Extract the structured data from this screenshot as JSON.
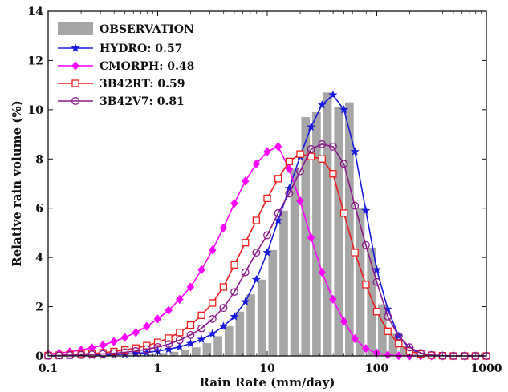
{
  "chart_data": {
    "type": "bar+line",
    "x_scale": "log",
    "xlim": [
      0.1,
      1000
    ],
    "ylim": [
      0,
      14
    ],
    "xlabel": "Rain Rate (mm/day)",
    "ylabel": "Relative rain volume (%)",
    "x_ticks": [
      "0.1",
      "1",
      "10",
      "100",
      "1000"
    ],
    "y_ticks": [
      "0",
      "2",
      "4",
      "6",
      "8",
      "10",
      "12",
      "14"
    ],
    "grid": false,
    "legend_position": "top-left",
    "bars": {
      "name": "OBSERVATION",
      "color": "#a6a6a6",
      "x": [
        0.112,
        0.141,
        0.178,
        0.224,
        0.282,
        0.355,
        0.447,
        0.562,
        0.708,
        0.891,
        1.122,
        1.413,
        1.778,
        2.239,
        2.818,
        3.548,
        4.467,
        5.623,
        7.079,
        8.913,
        11.22,
        14.13,
        17.78,
        22.39,
        28.18,
        35.48,
        44.67,
        56.23,
        70.79,
        89.13,
        112.2,
        141.3,
        177.8,
        223.9,
        281.8,
        354.8,
        446.7,
        562.3,
        707.9,
        891.3
      ],
      "values": [
        0,
        0,
        0,
        0,
        0,
        0,
        0.02,
        0.03,
        0.05,
        0.08,
        0.12,
        0.17,
        0.25,
        0.35,
        0.52,
        0.8,
        1.2,
        1.8,
        2.5,
        3.1,
        4.3,
        5.9,
        7.6,
        9.7,
        9.9,
        10.7,
        10.1,
        10.3,
        6.0,
        4.4,
        2.1,
        0.9,
        0.4,
        0.1,
        0.05,
        0,
        0,
        0,
        0,
        0
      ]
    },
    "series": [
      {
        "name": "HYDRO: 0.57",
        "color": "#1a1adf",
        "marker": "star",
        "x": [
          0.1,
          0.126,
          0.158,
          0.2,
          0.251,
          0.316,
          0.398,
          0.501,
          0.631,
          0.794,
          1.0,
          1.259,
          1.585,
          1.995,
          2.512,
          3.162,
          3.981,
          5.012,
          6.31,
          7.943,
          10.0,
          12.59,
          15.85,
          19.95,
          25.12,
          31.62,
          39.81,
          50.12,
          63.1,
          79.43,
          100.0,
          125.9,
          158.5,
          199.5,
          251.2,
          316.2,
          398.1,
          501.2,
          631.0,
          794.3,
          1000.0
        ],
        "y": [
          0.0,
          0.0,
          0.01,
          0.01,
          0.02,
          0.03,
          0.05,
          0.07,
          0.1,
          0.14,
          0.2,
          0.27,
          0.37,
          0.5,
          0.67,
          0.9,
          1.2,
          1.6,
          2.2,
          3.1,
          4.2,
          5.5,
          6.8,
          8.1,
          9.3,
          10.2,
          10.6,
          10.0,
          8.3,
          5.9,
          3.5,
          1.9,
          0.8,
          0.3,
          0.1,
          0.03,
          0.01,
          0.0,
          0.0,
          0.0,
          0.0
        ]
      },
      {
        "name": "CMORPH: 0.48",
        "color": "#ff00ff",
        "marker": "diamond",
        "x": [
          0.1,
          0.126,
          0.158,
          0.2,
          0.251,
          0.316,
          0.398,
          0.501,
          0.631,
          0.794,
          1.0,
          1.259,
          1.585,
          1.995,
          2.512,
          3.162,
          3.981,
          5.012,
          6.31,
          7.943,
          10.0,
          12.59,
          15.85,
          19.95,
          25.12,
          31.62,
          39.81,
          50.12,
          63.1,
          79.43,
          100.0,
          125.9,
          158.5,
          199.5,
          251.2,
          316.2,
          398.1,
          501.2,
          631.0,
          794.3,
          1000.0
        ],
        "y": [
          0.08,
          0.12,
          0.17,
          0.24,
          0.33,
          0.44,
          0.58,
          0.75,
          0.95,
          1.2,
          1.5,
          1.85,
          2.3,
          2.8,
          3.5,
          4.3,
          5.2,
          6.2,
          7.1,
          7.8,
          8.3,
          8.5,
          7.6,
          6.3,
          4.8,
          3.4,
          2.3,
          1.4,
          0.7,
          0.3,
          0.12,
          0.04,
          0.01,
          0.0,
          0.0,
          0.0,
          0.0,
          0.0,
          0.0,
          0.0,
          0.0
        ]
      },
      {
        "name": "3B42RT: 0.59",
        "color": "#ee1c1c",
        "marker": "square",
        "x": [
          0.1,
          0.126,
          0.158,
          0.2,
          0.251,
          0.316,
          0.398,
          0.501,
          0.631,
          0.794,
          1.0,
          1.259,
          1.585,
          1.995,
          2.512,
          3.162,
          3.981,
          5.012,
          6.31,
          7.943,
          10.0,
          12.59,
          15.85,
          19.95,
          25.12,
          31.62,
          39.81,
          50.12,
          63.1,
          79.43,
          100.0,
          125.9,
          158.5,
          199.5,
          251.2,
          316.2,
          398.1,
          501.2,
          631.0,
          794.3,
          1000.0
        ],
        "y": [
          0.02,
          0.03,
          0.05,
          0.07,
          0.1,
          0.13,
          0.18,
          0.24,
          0.32,
          0.42,
          0.55,
          0.72,
          0.95,
          1.25,
          1.65,
          2.15,
          2.8,
          3.7,
          4.6,
          5.5,
          6.4,
          7.2,
          7.9,
          8.2,
          8.1,
          8.0,
          7.4,
          5.8,
          4.2,
          2.9,
          1.8,
          1.0,
          0.5,
          0.2,
          0.08,
          0.03,
          0.01,
          0.0,
          0.0,
          0.0,
          0.0
        ]
      },
      {
        "name": "3B42V7: 0.81",
        "color": "#8b1a8b",
        "marker": "circle",
        "x": [
          0.1,
          0.126,
          0.158,
          0.2,
          0.251,
          0.316,
          0.398,
          0.501,
          0.631,
          0.794,
          1.0,
          1.259,
          1.585,
          1.995,
          2.512,
          3.162,
          3.981,
          5.012,
          6.31,
          7.943,
          10.0,
          12.59,
          15.85,
          19.95,
          25.12,
          31.62,
          39.81,
          50.12,
          63.1,
          79.43,
          100.0,
          125.9,
          158.5,
          199.5,
          251.2,
          316.2,
          398.1,
          501.2,
          631.0,
          794.3,
          1000.0
        ],
        "y": [
          0.01,
          0.02,
          0.03,
          0.04,
          0.06,
          0.08,
          0.11,
          0.15,
          0.2,
          0.27,
          0.36,
          0.48,
          0.64,
          0.85,
          1.12,
          1.5,
          1.95,
          2.6,
          3.4,
          4.2,
          4.9,
          5.8,
          6.6,
          7.5,
          8.4,
          8.6,
          8.5,
          7.8,
          6.1,
          4.5,
          3.0,
          1.6,
          0.8,
          0.35,
          0.12,
          0.04,
          0.01,
          0.0,
          0.0,
          0.0,
          0.0
        ]
      }
    ]
  }
}
